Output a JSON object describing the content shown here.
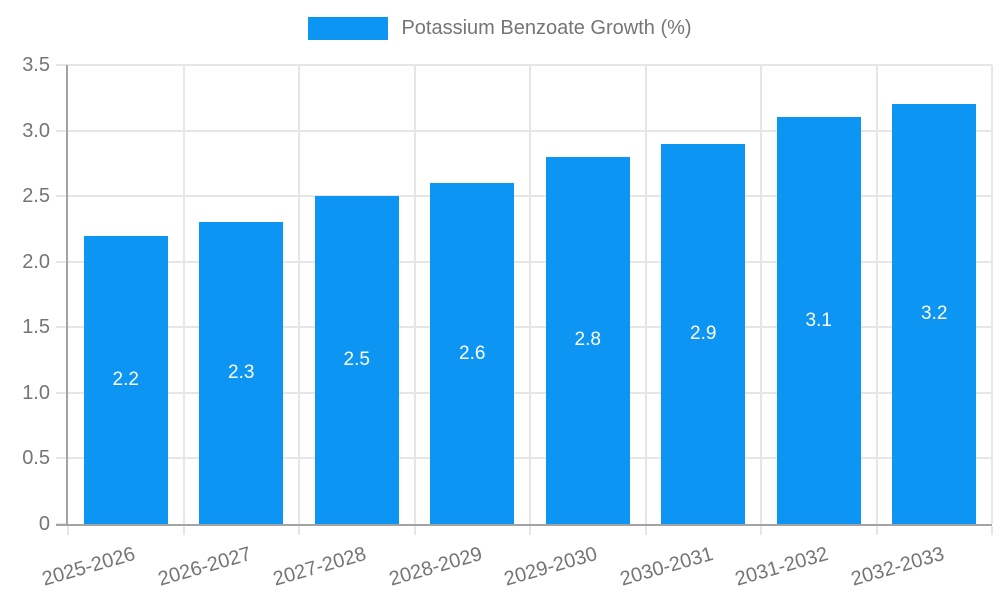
{
  "legend": {
    "label": "Potassium Benzoate Growth (%)"
  },
  "colors": {
    "bar": "#0C95F2",
    "bar_label": "#FFFFFF",
    "text_gray": "#757575",
    "grid": "#E6E6E6",
    "axis": "#A3A3A3",
    "background": "#FFFFFF"
  },
  "chart_data": {
    "type": "bar",
    "title": "",
    "series_name": "Potassium Benzoate Growth (%)",
    "categories": [
      "2025-2026",
      "2026-2027",
      "2027-2028",
      "2028-2029",
      "2029-2030",
      "2030-2031",
      "2031-2032",
      "2032-2033"
    ],
    "values": [
      2.2,
      2.3,
      2.5,
      2.6,
      2.8,
      2.9,
      3.1,
      3.2
    ],
    "values_display": [
      "2.2",
      "2.3",
      "2.5",
      "2.6",
      "2.8",
      "2.9",
      "3.1",
      "3.2"
    ],
    "xlabel": "",
    "ylabel": "",
    "ylim": [
      0,
      3.5
    ],
    "ytick_step": 0.5,
    "yticks": [
      "0",
      "0.5",
      "1.0",
      "1.5",
      "2.0",
      "2.5",
      "3.0",
      "3.5"
    ],
    "grid": true,
    "legend_position": "top",
    "bar_label_position": "center"
  }
}
